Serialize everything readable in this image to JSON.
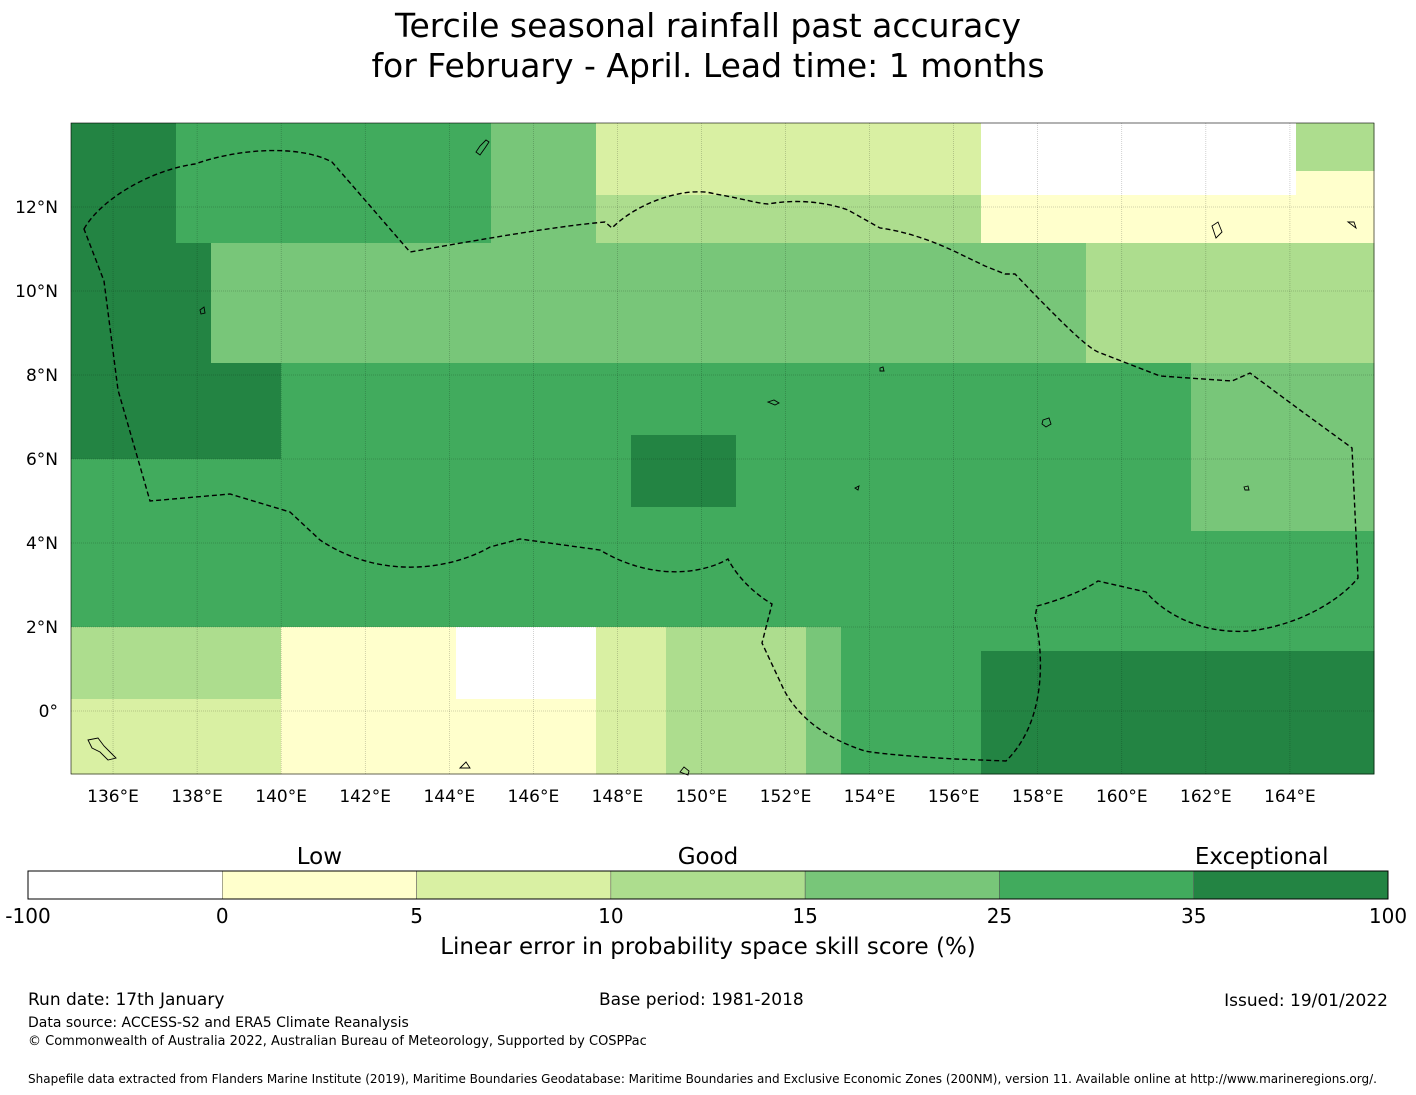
{
  "title": {
    "line1": "Tercile seasonal rainfall past accuracy",
    "line2": "for February - April. Lead time: 1 months"
  },
  "map": {
    "lat_labels": [
      "12°N",
      "10°N",
      "8°N",
      "6°N",
      "4°N",
      "2°N",
      "0°"
    ],
    "lon_labels": [
      "136°E",
      "138°E",
      "140°E",
      "142°E",
      "144°E",
      "146°E",
      "148°E",
      "150°E",
      "152°E",
      "154°E",
      "156°E",
      "158°E",
      "160°E",
      "162°E",
      "164°E"
    ],
    "lon_values": [
      136,
      138,
      140,
      142,
      144,
      146,
      148,
      150,
      152,
      154,
      156,
      158,
      160,
      162,
      164
    ],
    "lat_values": [
      12,
      10,
      8,
      6,
      4,
      2,
      0
    ],
    "lon_range": [
      135.0,
      166.0
    ],
    "lat_range": [
      -1.5,
      14.0
    ],
    "region_outline": "EEZ boundary (dashed)"
  },
  "colorbar": {
    "category_labels": [
      "Low",
      "Good",
      "Exceptional"
    ],
    "tick_labels": [
      "-100",
      "0",
      "5",
      "10",
      "15",
      "25",
      "35",
      "100"
    ],
    "colors": [
      "#ffffff",
      "#ffffcc",
      "#d9f0a3",
      "#addd8e",
      "#78c679",
      "#41ab5d",
      "#238443"
    ],
    "title": "Linear error in probability space skill score (%)"
  },
  "footer": {
    "run_date": "Run date: 17th January",
    "base_period": "Base period: 1981-2018",
    "issued": "Issued: 19/01/2022",
    "data_source": "Data source: ACCESS-S2 and ERA5 Climate Reanalysis",
    "copyright": "© Commonwealth of Australia 2022, Australian Bureau of Meteorology, Supported by COSPPac",
    "shapefile": "Shapefile data extracted from Flanders Marine Institute (2019), Maritime Boundaries Geodatabase: Maritime Boundaries and Exclusive Economic Zones (200NM), version 11. Available online at http://www.marineregions.org/."
  }
}
